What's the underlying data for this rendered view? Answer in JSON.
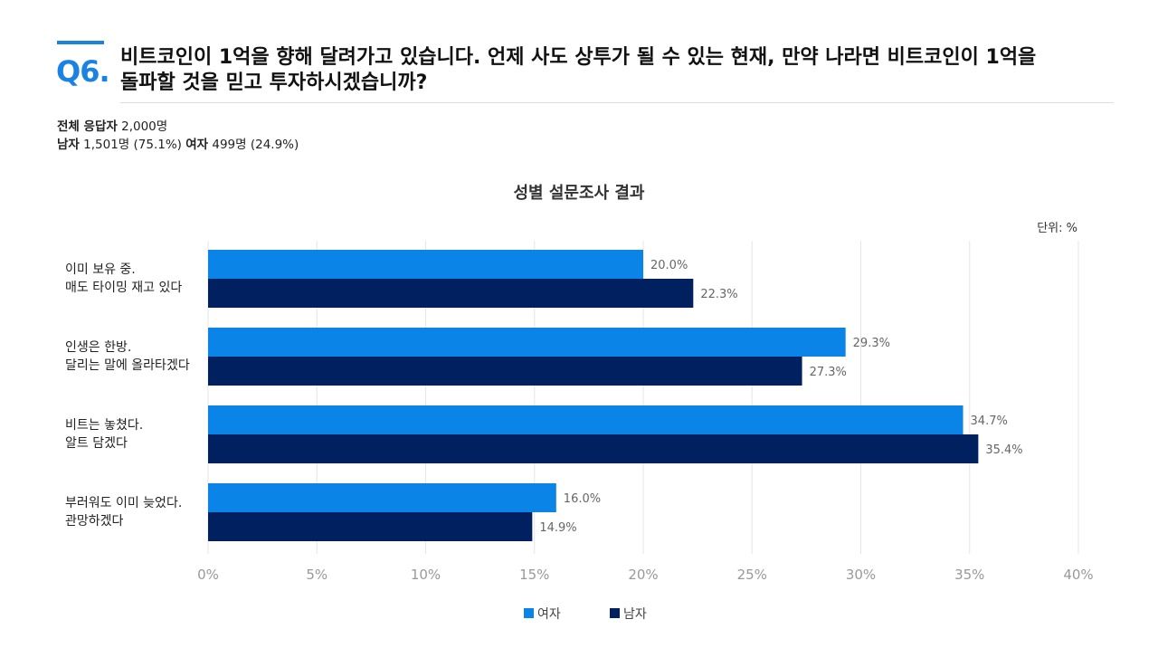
{
  "header": {
    "q_label": "Q6.",
    "question_line1": "비트코인이 1억을 향해 달려가고 있습니다. 언제 사도 상투가 될 수 있는 현재, 만약 나라면 비트코인이 1억을",
    "question_line2": "돌파할 것을 믿고 투자하시겠습니까?"
  },
  "respondents": {
    "total_label": "전체 응답자",
    "total_value": "2,000명",
    "male_label": "남자",
    "male_value": "1,501명 (75.1%)",
    "female_label": "여자",
    "female_value": "499명 (24.9%)"
  },
  "colors": {
    "female": "#0a84e6",
    "male": "#002060",
    "grid": "#e6e6e6",
    "accent": "#1a82e2"
  },
  "chart_data": {
    "type": "bar",
    "orientation": "horizontal",
    "title": "성별 설문조사 결과",
    "unit_label": "단위: %",
    "categories": [
      [
        "이미 보유 중.",
        "매도 타이밍 재고 있다"
      ],
      [
        "인생은 한방.",
        "달리는 말에 올라타겠다"
      ],
      [
        "비트는 놓쳤다.",
        "알트 담겠다"
      ],
      [
        "부러워도 이미 늦었다.",
        "관망하겠다"
      ]
    ],
    "series": [
      {
        "name": "여자",
        "values": [
          20.0,
          29.3,
          34.7,
          16.0
        ],
        "labels": [
          "20.0%",
          "29.3%",
          "34.7%",
          "16.0%"
        ]
      },
      {
        "name": "남자",
        "values": [
          22.3,
          27.3,
          35.4,
          14.9
        ],
        "labels": [
          "22.3%",
          "27.3%",
          "35.4%",
          "14.9%"
        ]
      }
    ],
    "xlim": [
      0,
      40
    ],
    "xticks": [
      "0%",
      "5%",
      "10%",
      "15%",
      "20%",
      "25%",
      "30%",
      "35%",
      "40%"
    ],
    "grid": true,
    "legend_position": "bottom"
  }
}
